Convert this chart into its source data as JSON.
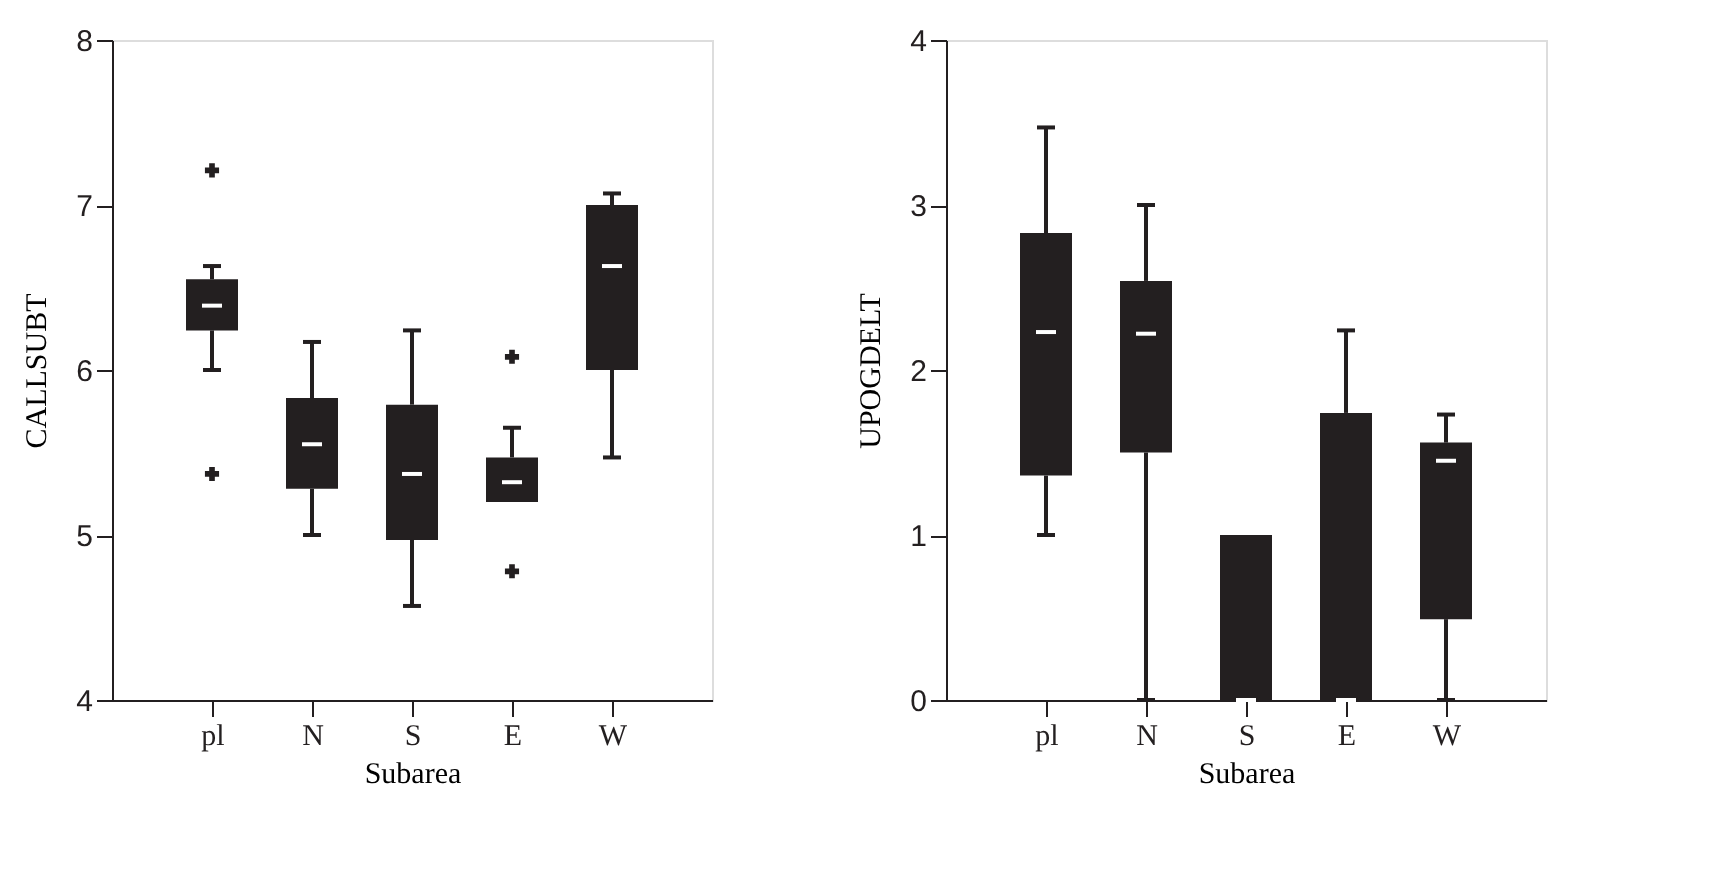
{
  "chart_data": [
    {
      "type": "box",
      "xlabel": "Subarea",
      "ylabel": "CALLSUBT",
      "categories": [
        "pl",
        "N",
        "S",
        "E",
        "W"
      ],
      "ylim": [
        4,
        8
      ],
      "yticks": [
        4,
        5,
        6,
        7,
        8
      ],
      "grid": false,
      "series": [
        {
          "color": "#231f20",
          "boxes": [
            {
              "low": 6.0,
              "q1": 6.24,
              "median": 6.39,
              "q3": 6.55,
              "high": 6.63,
              "outliers": [
                7.21,
                5.37
              ]
            },
            {
              "low": 5.0,
              "q1": 5.28,
              "median": 5.55,
              "q3": 5.83,
              "high": 6.17
            },
            {
              "low": 4.57,
              "q1": 4.97,
              "median": 5.37,
              "q3": 5.79,
              "high": 6.24
            },
            {
              "low": 5.2,
              "q1": 5.2,
              "median": 5.32,
              "q3": 5.47,
              "high": 5.65,
              "outliers": [
                6.08,
                4.78
              ]
            },
            {
              "low": 5.47,
              "q1": 6.0,
              "median": 6.63,
              "q3": 7.0,
              "high": 7.07
            }
          ]
        }
      ]
    },
    {
      "type": "box",
      "xlabel": "Subarea",
      "ylabel": "UPOGDELT",
      "categories": [
        "pl",
        "N",
        "S",
        "E",
        "W"
      ],
      "ylim": [
        0,
        4
      ],
      "yticks": [
        0,
        1,
        2,
        3,
        4
      ],
      "grid": false,
      "series": [
        {
          "color": "#231f20",
          "boxes": [
            {
              "low": 1.0,
              "q1": 1.36,
              "median": 2.23,
              "q3": 2.83,
              "high": 3.47
            },
            {
              "low": 0,
              "q1": 1.5,
              "median": 2.22,
              "q3": 2.54,
              "high": 3.0
            },
            {
              "low": 0,
              "q1": 0,
              "median": 0,
              "q3": 1.0,
              "high": 1.0
            },
            {
              "low": 0,
              "q1": 0,
              "median": 0,
              "q3": 1.74,
              "high": 2.24
            },
            {
              "low": 0,
              "q1": 0.49,
              "median": 1.45,
              "q3": 1.56,
              "high": 1.73
            }
          ]
        }
      ]
    }
  ]
}
